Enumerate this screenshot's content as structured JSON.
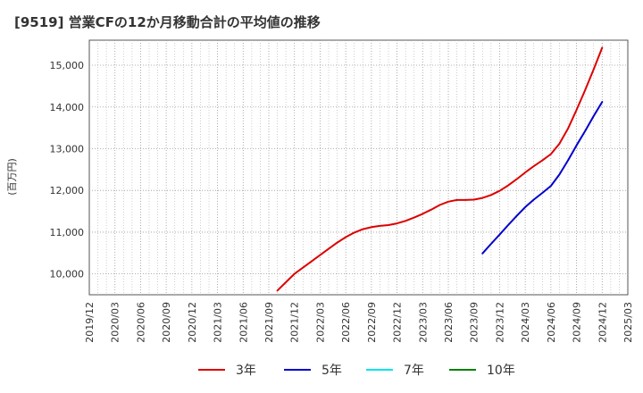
{
  "chart_data": {
    "type": "line",
    "title": "[9519]  営業CFの12か月移動合計の平均値の推移",
    "ylabel": "(百万円)",
    "xlabel": "",
    "x_ticks": [
      "2019/12",
      "2020/03",
      "2020/06",
      "2020/09",
      "2020/12",
      "2021/03",
      "2021/06",
      "2021/09",
      "2021/12",
      "2022/03",
      "2022/06",
      "2022/09",
      "2022/12",
      "2023/03",
      "2023/06",
      "2023/09",
      "2023/12",
      "2024/03",
      "2024/06",
      "2024/09",
      "2024/12",
      "2025/03"
    ],
    "y_ticks": [
      10000,
      11000,
      12000,
      13000,
      14000,
      15000
    ],
    "y_tick_labels": [
      "10,000",
      "11,000",
      "12,000",
      "13,000",
      "14,000",
      "15,000"
    ],
    "ylim": [
      9500,
      15600
    ],
    "grid": true,
    "legend_position": "bottom",
    "series": [
      {
        "name": "3年",
        "color": "#dd0000",
        "x": [
          "2021/10",
          "2021/11",
          "2021/12",
          "2022/01",
          "2022/02",
          "2022/03",
          "2022/04",
          "2022/05",
          "2022/06",
          "2022/07",
          "2022/08",
          "2022/09",
          "2022/10",
          "2022/11",
          "2022/12",
          "2023/01",
          "2023/02",
          "2023/03",
          "2023/04",
          "2023/05",
          "2023/06",
          "2023/07",
          "2023/08",
          "2023/09",
          "2023/10",
          "2023/11",
          "2023/12",
          "2024/01",
          "2024/02",
          "2024/03",
          "2024/04",
          "2024/05",
          "2024/06",
          "2024/07",
          "2024/08",
          "2024/09",
          "2024/10",
          "2024/11",
          "2024/12"
        ],
        "values": [
          9600,
          9800,
          10000,
          10150,
          10300,
          10450,
          10600,
          10750,
          10880,
          10990,
          11070,
          11120,
          11150,
          11170,
          11210,
          11270,
          11350,
          11440,
          11540,
          11650,
          11730,
          11770,
          11770,
          11780,
          11820,
          11890,
          11990,
          12120,
          12270,
          12430,
          12580,
          12720,
          12870,
          13120,
          13480,
          13930,
          14400,
          14900,
          15420
        ]
      },
      {
        "name": "5年",
        "color": "#0000cc",
        "x": [
          "2023/10",
          "2023/11",
          "2023/12",
          "2024/01",
          "2024/02",
          "2024/03",
          "2024/04",
          "2024/05",
          "2024/06",
          "2024/07",
          "2024/08",
          "2024/09",
          "2024/10",
          "2024/11",
          "2024/12"
        ],
        "values": [
          10490,
          10720,
          10940,
          11170,
          11390,
          11600,
          11780,
          11940,
          12110,
          12380,
          12720,
          13080,
          13420,
          13780,
          14120
        ]
      },
      {
        "name": "7年",
        "color": "#00e5ee",
        "x": [],
        "values": []
      },
      {
        "name": "10年",
        "color": "#008000",
        "x": [],
        "values": []
      }
    ]
  }
}
